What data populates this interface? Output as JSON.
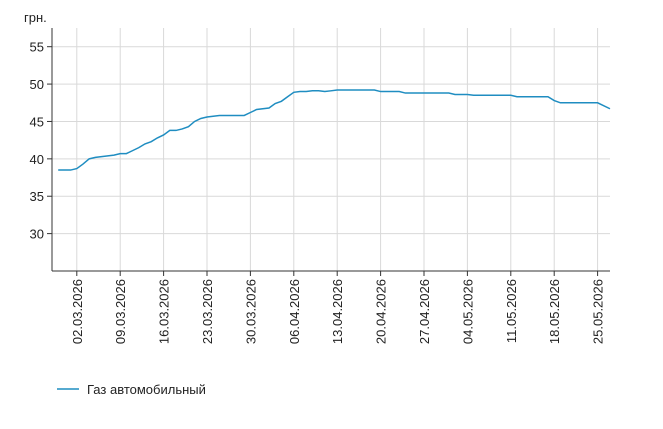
{
  "chart_data": {
    "type": "line",
    "y_axis_label": "грн.",
    "x": [
      "27.02.2026",
      "01.03.2026",
      "02.03.2026",
      "03.03.2026",
      "04.03.2026",
      "05.03.2026",
      "07.03.2026",
      "08.03.2026",
      "09.03.2026",
      "10.03.2026",
      "11.03.2026",
      "12.03.2026",
      "13.03.2026",
      "14.03.2026",
      "15.03.2026",
      "16.03.2026",
      "17.03.2026",
      "18.03.2026",
      "19.03.2026",
      "20.03.2026",
      "21.03.2026",
      "22.03.2026",
      "23.03.2026",
      "24.03.2026",
      "25.03.2026",
      "29.03.2026",
      "30.03.2026",
      "31.03.2026",
      "02.04.2026",
      "03.04.2026",
      "04.04.2026",
      "05.04.2026",
      "06.04.2026",
      "07.04.2026",
      "08.04.2026",
      "09.04.2026",
      "10.04.2026",
      "11.04.2026",
      "12.04.2026",
      "13.04.2026",
      "19.04.2026",
      "20.04.2026",
      "23.04.2026",
      "24.04.2026",
      "01.05.2026",
      "02.05.2026",
      "04.05.2026",
      "05.05.2026",
      "11.05.2026",
      "12.05.2026",
      "17.05.2026",
      "18.05.2026",
      "19.05.2026",
      "25.05.2026",
      "27.05.2026"
    ],
    "series": [
      {
        "name": "Газ автомобильный",
        "color": "#1f8dc1",
        "values": [
          38.5,
          38.5,
          38.7,
          39.3,
          40.0,
          40.2,
          40.4,
          40.5,
          40.7,
          40.7,
          41.1,
          41.5,
          42.0,
          42.3,
          42.8,
          43.2,
          43.8,
          43.8,
          44.0,
          44.3,
          45.0,
          45.4,
          45.6,
          45.7,
          45.8,
          45.8,
          46.2,
          46.6,
          46.8,
          47.4,
          47.7,
          48.3,
          48.9,
          49.0,
          49.0,
          49.1,
          49.1,
          49.0,
          49.1,
          49.2,
          49.2,
          49.0,
          49.0,
          48.8,
          48.8,
          48.6,
          48.6,
          48.5,
          48.5,
          48.3,
          48.3,
          47.8,
          47.5,
          47.5,
          46.7
        ]
      }
    ],
    "xlim": [
      "26.02.2026",
      "27.05.2026"
    ],
    "xticks": [
      "02.03.2026",
      "09.03.2026",
      "16.03.2026",
      "23.03.2026",
      "30.03.2026",
      "06.04.2026",
      "13.04.2026",
      "20.04.2026",
      "27.04.2026",
      "04.05.2026",
      "11.05.2026",
      "18.05.2026",
      "25.05.2026"
    ],
    "ylim": [
      25,
      57.5
    ],
    "yticks": [
      30,
      35,
      40,
      45,
      50,
      55
    ],
    "grid": true
  }
}
